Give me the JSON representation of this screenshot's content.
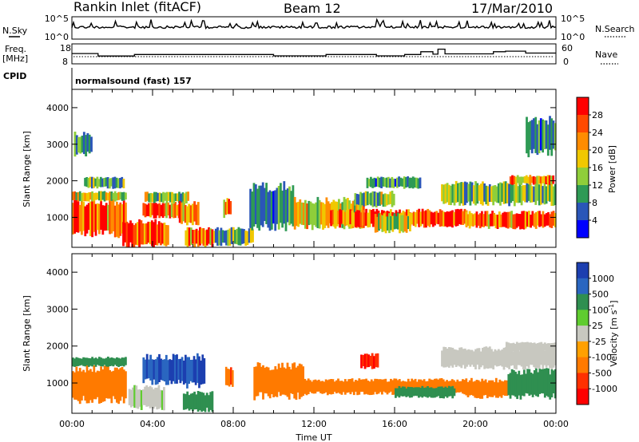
{
  "header": {
    "station": "Rankin Inlet (fitACF)",
    "beam": "Beam 12",
    "date": "17/Mar/2010"
  },
  "noise_panel": {
    "left_label": "N.Sky",
    "left_ticks": [
      "10^5",
      "10^0"
    ],
    "right_ticks": [
      "10^5",
      "10^0"
    ],
    "right_label": "N.Search"
  },
  "freq_panel": {
    "left_label_1": "Freq.",
    "left_label_2": "[MHz]",
    "left_ticks": [
      "18",
      "8"
    ],
    "right_ticks": [
      "60",
      "0"
    ],
    "right_label": "Nave"
  },
  "cpid": {
    "label": "CPID",
    "value": "normalsound (fast) 157"
  },
  "colors": {
    "power_scale": [
      "#0000ff",
      "#2a56b8",
      "#2e9a55",
      "#8fce3a",
      "#f0c800",
      "#ff8c00",
      "#ff4a00",
      "#ff0000"
    ],
    "velocity_scale": [
      "#1c3fb0",
      "#2a66c0",
      "#2f8f50",
      "#5fcc2f",
      "#c8c8c0",
      "#ffa000",
      "#ff7a00",
      "#ff3000",
      "#ff0000"
    ]
  },
  "chart_data": [
    {
      "type": "line",
      "panel": "noise",
      "series": [
        {
          "name": "N.Sky",
          "description": "log10 noise, mostly near 10^3 with spikes toward 10^5"
        }
      ],
      "ylim": [
        0,
        5
      ],
      "ylabel_left": "N.Sky",
      "ylabel_right": "N.Search"
    },
    {
      "type": "line",
      "panel": "frequency",
      "ylabel": "Freq. [MHz]",
      "ylim": [
        8,
        18
      ],
      "series": [
        {
          "name": "Freq.",
          "x": [
            0,
            1.3,
            1.3,
            3.1,
            3.1,
            10.0,
            10.0,
            12.6,
            12.6,
            15.1,
            15.1,
            16.5,
            16.5,
            17.3,
            17.3,
            17.9,
            17.9,
            18.15,
            18.15,
            18.5,
            18.5,
            20.9,
            20.9,
            21.5,
            21.5,
            22.5,
            22.5,
            24
          ],
          "y": [
            13.2,
            13.2,
            11.7,
            11.7,
            12.6,
            12.6,
            11.8,
            11.8,
            12.6,
            12.6,
            11.8,
            11.8,
            12.6,
            12.6,
            14.3,
            14.3,
            12.8,
            12.8,
            15.8,
            15.8,
            13.0,
            13.0,
            14.3,
            14.3,
            14.6,
            14.6,
            13.5,
            13.5
          ]
        }
      ]
    },
    {
      "type": "heatmap",
      "panel": "power",
      "xlabel": "",
      "ylabel": "Slant Range [km]",
      "xlim": [
        0,
        24
      ],
      "ylim": [
        180,
        4500
      ],
      "yticks": [
        1000,
        2000,
        3000,
        4000
      ],
      "colorbar_label": "Power [dB]",
      "colorbar_ticks": [
        "28",
        "24",
        "20",
        "16",
        "12",
        "8",
        "4"
      ],
      "regions": [
        {
          "t": [
            0.0,
            2.7
          ],
          "r": [
            500,
            1450
          ],
          "v": 26
        },
        {
          "t": [
            0.0,
            2.7
          ],
          "r": [
            1450,
            1700
          ],
          "v": 17
        },
        {
          "t": [
            0.6,
            2.6
          ],
          "r": [
            1800,
            2100
          ],
          "v": 12
        },
        {
          "t": [
            0.1,
            1.0
          ],
          "r": [
            2700,
            3300
          ],
          "v": 8
        },
        {
          "t": [
            2.5,
            4.8
          ],
          "r": [
            200,
            900
          ],
          "v": 27
        },
        {
          "t": [
            3.5,
            5.6
          ],
          "r": [
            1000,
            1400
          ],
          "v": 24
        },
        {
          "t": [
            3.6,
            5.8
          ],
          "r": [
            1400,
            1700
          ],
          "v": 14
        },
        {
          "t": [
            5.6,
            7.0
          ],
          "r": [
            200,
            700
          ],
          "v": 26
        },
        {
          "t": [
            5.3,
            6.3
          ],
          "r": [
            800,
            1400
          ],
          "v": 20
        },
        {
          "t": [
            7.0,
            9.0
          ],
          "r": [
            250,
            700
          ],
          "v": 12
        },
        {
          "t": [
            7.5,
            7.9
          ],
          "r": [
            1000,
            1500
          ],
          "v": 22
        },
        {
          "t": [
            8.8,
            11.0
          ],
          "r": [
            700,
            1900
          ],
          "v": 9
        },
        {
          "t": [
            11.0,
            14.5
          ],
          "r": [
            700,
            1500
          ],
          "v": 18
        },
        {
          "t": [
            12.8,
            19.6
          ],
          "r": [
            750,
            1200
          ],
          "v": 26
        },
        {
          "t": [
            14.0,
            16.0
          ],
          "r": [
            1300,
            1700
          ],
          "v": 14
        },
        {
          "t": [
            14.6,
            17.3
          ],
          "r": [
            1800,
            2100
          ],
          "v": 9
        },
        {
          "t": [
            15.0,
            16.8
          ],
          "r": [
            600,
            1100
          ],
          "v": 16
        },
        {
          "t": [
            18.3,
            24.0
          ],
          "r": [
            1350,
            1950
          ],
          "v": 13
        },
        {
          "t": [
            19.5,
            24.0
          ],
          "r": [
            700,
            1150
          ],
          "v": 25
        },
        {
          "t": [
            21.7,
            23.9
          ],
          "r": [
            1900,
            2150
          ],
          "v": 22
        },
        {
          "t": [
            22.5,
            24.0
          ],
          "r": [
            2700,
            3700
          ],
          "v": 8
        }
      ]
    },
    {
      "type": "heatmap",
      "panel": "velocity",
      "xlabel": "Time UT",
      "ylabel": "Slant Range [km]",
      "xlim": [
        0,
        24
      ],
      "ylim": [
        180,
        4500
      ],
      "xtick_labels": [
        "00:00",
        "04:00",
        "08:00",
        "12:00",
        "16:00",
        "20:00",
        "00:00"
      ],
      "yticks": [
        1000,
        2000,
        3000,
        4000
      ],
      "colorbar_label": "Velocity [m s^-1]",
      "colorbar_ticks": [
        "1000",
        "500",
        "100",
        "25",
        "-25",
        "-100",
        "-500",
        "-1000"
      ],
      "regions": [
        {
          "t": [
            0.0,
            2.7
          ],
          "r": [
            500,
            1450
          ],
          "v": -200
        },
        {
          "t": [
            0.0,
            2.7
          ],
          "r": [
            1450,
            1700
          ],
          "v": 150
        },
        {
          "t": [
            2.8,
            4.6
          ],
          "r": [
            300,
            900
          ],
          "v": 20
        },
        {
          "t": [
            3.5,
            5.5
          ],
          "r": [
            1000,
            1750
          ],
          "v": 600
        },
        {
          "t": [
            5.5,
            6.6
          ],
          "r": [
            900,
            1750
          ],
          "v": 700
        },
        {
          "t": [
            5.5,
            7.0
          ],
          "r": [
            250,
            750
          ],
          "v": 200
        },
        {
          "t": [
            7.6,
            8.0
          ],
          "r": [
            900,
            1400
          ],
          "v": -400
        },
        {
          "t": [
            9.0,
            11.5
          ],
          "r": [
            600,
            1500
          ],
          "v": -150
        },
        {
          "t": [
            11.5,
            19.5
          ],
          "r": [
            700,
            1100
          ],
          "v": -350
        },
        {
          "t": [
            14.3,
            15.2
          ],
          "r": [
            1400,
            1800
          ],
          "v": -700
        },
        {
          "t": [
            16.0,
            19.0
          ],
          "r": [
            600,
            900
          ],
          "v": 150
        },
        {
          "t": [
            18.3,
            24.0
          ],
          "r": [
            1400,
            1950
          ],
          "v": 0
        },
        {
          "t": [
            19.5,
            21.6
          ],
          "r": [
            600,
            1100
          ],
          "v": -150
        },
        {
          "t": [
            21.6,
            24.0
          ],
          "r": [
            600,
            1350
          ],
          "v": 150
        },
        {
          "t": [
            21.5,
            24.0
          ],
          "r": [
            1850,
            2100
          ],
          "v": 0
        }
      ]
    }
  ]
}
